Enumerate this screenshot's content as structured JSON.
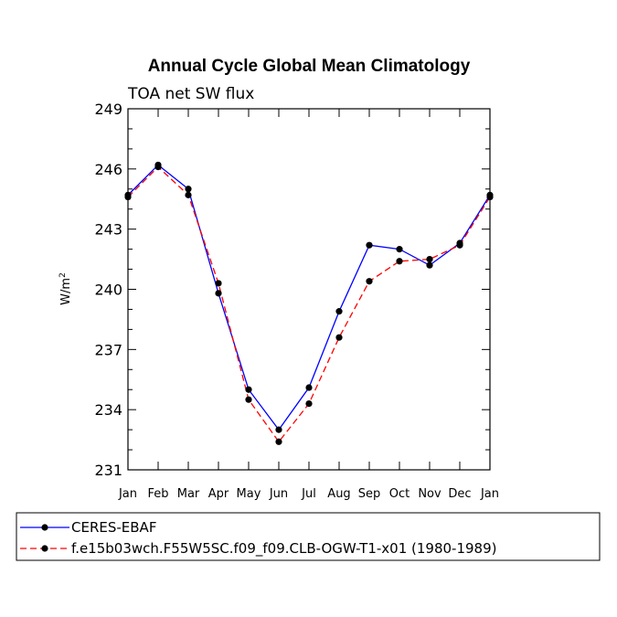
{
  "chart_data": {
    "type": "line",
    "title": "Annual Cycle Global Mean Climatology",
    "subtitle": "TOA net SW flux",
    "ylabel": "W/m",
    "ylabel_sup": "2",
    "ylim": [
      231,
      249
    ],
    "yticks": [
      "231",
      "234",
      "237",
      "240",
      "243",
      "246",
      "249"
    ],
    "categories": [
      "Jan",
      "Feb",
      "Mar",
      "Apr",
      "May",
      "Jun",
      "Jul",
      "Aug",
      "Sep",
      "Oct",
      "Nov",
      "Dec",
      "Jan"
    ],
    "series": [
      {
        "name": "CERES-EBAF",
        "color": "#0000ff",
        "dash": "solid",
        "values": [
          244.7,
          246.2,
          245.0,
          239.8,
          235.0,
          233.0,
          235.1,
          238.9,
          242.2,
          242.0,
          241.2,
          242.3,
          244.7
        ]
      },
      {
        "name": "f.e15b03wch.F55W5SC.f09_f09.CLB-OGW-T1-x01 (1980-1989)",
        "color": "#ff0000",
        "dash": "dashed",
        "values": [
          244.6,
          246.1,
          244.7,
          240.3,
          234.5,
          232.4,
          234.3,
          237.6,
          240.4,
          241.4,
          241.5,
          242.2,
          244.6
        ]
      }
    ],
    "grid": false,
    "legend_position": "bottom"
  }
}
